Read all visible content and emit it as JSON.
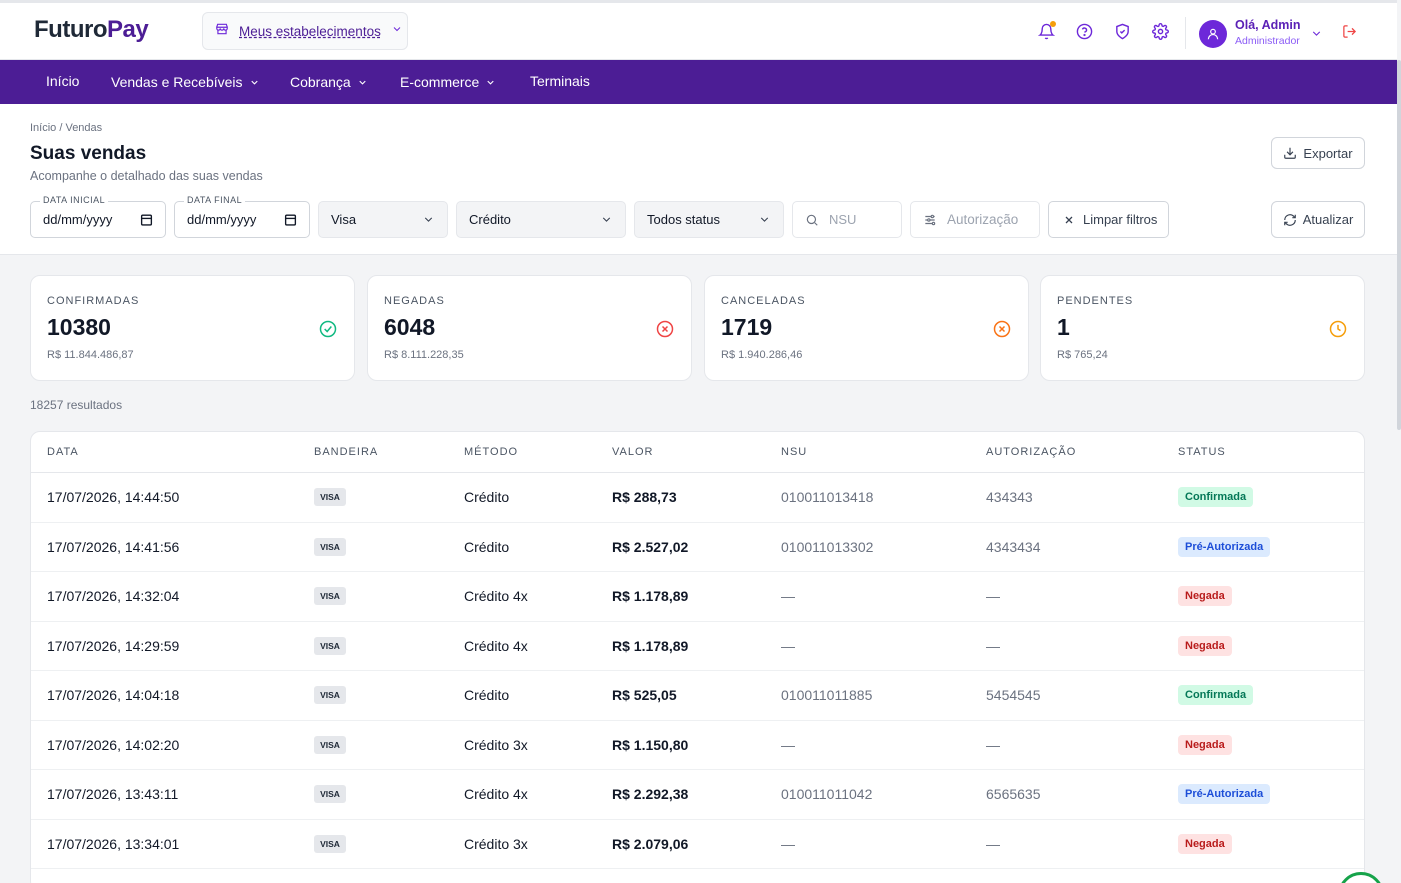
{
  "app": {
    "logo_part1": "Futuro",
    "logo_part2": "Pay",
    "establishment_label": "Meus estabelecimentos"
  },
  "user": {
    "greeting": "Olá, Admin",
    "role": "Administrador"
  },
  "nav": {
    "items": [
      {
        "label": "Início",
        "dropdown": false
      },
      {
        "label": "Vendas e Recebíveis",
        "dropdown": true
      },
      {
        "label": "Cobrança",
        "dropdown": true
      },
      {
        "label": "E-commerce",
        "dropdown": true
      },
      {
        "label": "Terminais",
        "dropdown": false
      }
    ]
  },
  "page": {
    "breadcrumb": "Início / Vendas",
    "title": "Suas vendas",
    "subtitle": "Acompanhe o detalhado das suas vendas",
    "export_label": "Exportar",
    "refresh_label": "Atualizar"
  },
  "filters": {
    "start_date_label": "DATA INICIAL",
    "start_date_value": "dd/mm/yyyy",
    "end_date_label": "DATA FINAL",
    "end_date_value": "dd/mm/yyyy",
    "brand": "Visa",
    "method": "Crédito",
    "status": "Todos status",
    "nsu_placeholder": "NSU",
    "auth_placeholder": "Autorização",
    "clear_label": "Limpar filtros"
  },
  "summary": [
    {
      "title": "CONFIRMADAS",
      "count": "10380",
      "amount": "R$ 11.844.486,87",
      "icon": "check-circle-icon",
      "color": "#10b981"
    },
    {
      "title": "NEGADAS",
      "count": "6048",
      "amount": "R$ 8.111.228,35",
      "icon": "x-circle-icon",
      "color": "#ef4444"
    },
    {
      "title": "CANCELADAS",
      "count": "1719",
      "amount": "R$ 1.940.286,46",
      "icon": "x-circle-icon",
      "color": "#f97316"
    },
    {
      "title": "PENDENTES",
      "count": "1",
      "amount": "R$ 765,24",
      "icon": "clock-icon",
      "color": "#f59e0b"
    }
  ],
  "results_count": "18257 resultados",
  "table": {
    "columns": [
      "DATA",
      "BANDEIRA",
      "MÉTODO",
      "VALOR",
      "NSU",
      "AUTORIZAÇÃO",
      "STATUS"
    ],
    "rows": [
      {
        "date": "17/07/2026, 14:44:50",
        "brand": "VISA",
        "method": "Crédito",
        "value": "R$ 288,73",
        "nsu": "010011013418",
        "auth": "434343",
        "status": "Confirmada"
      },
      {
        "date": "17/07/2026, 14:41:56",
        "brand": "VISA",
        "method": "Crédito",
        "value": "R$ 2.527,02",
        "nsu": "010011013302",
        "auth": "4343434",
        "status": "Pré-Autorizada"
      },
      {
        "date": "17/07/2026, 14:32:04",
        "brand": "VISA",
        "method": "Crédito 4x",
        "value": "R$ 1.178,89",
        "nsu": "—",
        "auth": "—",
        "status": "Negada"
      },
      {
        "date": "17/07/2026, 14:29:59",
        "brand": "VISA",
        "method": "Crédito 4x",
        "value": "R$ 1.178,89",
        "nsu": "—",
        "auth": "—",
        "status": "Negada"
      },
      {
        "date": "17/07/2026, 14:04:18",
        "brand": "VISA",
        "method": "Crédito",
        "value": "R$ 525,05",
        "nsu": "010011011885",
        "auth": "5454545",
        "status": "Confirmada"
      },
      {
        "date": "17/07/2026, 14:02:20",
        "brand": "VISA",
        "method": "Crédito 3x",
        "value": "R$ 1.150,80",
        "nsu": "—",
        "auth": "—",
        "status": "Negada"
      },
      {
        "date": "17/07/2026, 13:43:11",
        "brand": "VISA",
        "method": "Crédito 4x",
        "value": "R$ 2.292,38",
        "nsu": "010011011042",
        "auth": "6565635",
        "status": "Pré-Autorizada"
      },
      {
        "date": "17/07/2026, 13:34:01",
        "brand": "VISA",
        "method": "Crédito 3x",
        "value": "R$ 2.079,06",
        "nsu": "—",
        "auth": "—",
        "status": "Negada"
      }
    ]
  },
  "status_colors": {
    "Confirmada": {
      "bg": "#d1fae5",
      "fg": "#047857"
    },
    "Pré-Autorizada": {
      "bg": "#dbeafe",
      "fg": "#1d4ed8"
    },
    "Negada": {
      "bg": "#fee2e2",
      "fg": "#b91c1c"
    }
  },
  "colors": {
    "brand_purple": "#4c1d95",
    "accent_purple": "#6d28d9"
  }
}
